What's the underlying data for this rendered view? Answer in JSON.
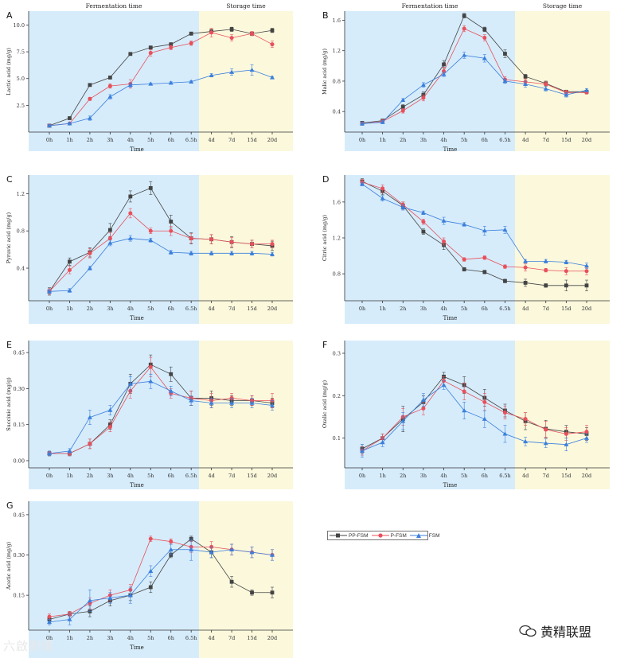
{
  "legend": [
    {
      "name": "PP-FSM",
      "color": "#444444",
      "marker": "square"
    },
    {
      "name": "P-FSM",
      "color": "#e8505b",
      "marker": "circle"
    },
    {
      "name": "FSM",
      "color": "#3b7fdc",
      "marker": "triangle"
    }
  ],
  "colors": {
    "fermentation_bg": "#d6ecfb",
    "storage_bg": "#fbf8dc",
    "axis": "#333333"
  },
  "watermark": {
    "left_text": "六啟鹊儒",
    "right_text": "黄精联盟"
  },
  "chart_data": [
    {
      "id": "A",
      "type": "line",
      "panel_label": "A",
      "title_left": "Fermentation time",
      "title_right": "Storage time",
      "xlabel": "Time",
      "ylabel": "Lactic acid (mg/g)",
      "categories": [
        "0h",
        "1h",
        "2h",
        "3h",
        "4h",
        "5h",
        "6h",
        "6.5h",
        "4d",
        "7d",
        "15d",
        "20d"
      ],
      "ylim": [
        0,
        11.3
      ],
      "yticks": [
        2.5,
        5.0,
        7.5,
        10.0
      ],
      "ytick_labels": [
        "2.5",
        "5.0",
        "7.5",
        "10.0"
      ],
      "series": [
        {
          "name": "PP-FSM",
          "values": [
            0.6,
            1.3,
            4.4,
            5.1,
            7.3,
            7.9,
            8.2,
            9.2,
            9.4,
            9.6,
            9.2,
            9.5
          ],
          "errors": [
            0.1,
            0.1,
            0.1,
            0.15,
            0.1,
            0.15,
            0.15,
            0.15,
            0.2,
            0.2,
            0.15,
            0.2
          ]
        },
        {
          "name": "P-FSM",
          "values": [
            0.6,
            0.8,
            3.1,
            4.3,
            4.5,
            7.4,
            7.9,
            8.3,
            9.3,
            8.8,
            9.2,
            8.2
          ],
          "errors": [
            0.1,
            0.1,
            0.15,
            0.2,
            0.4,
            0.3,
            0.2,
            0.2,
            0.4,
            0.3,
            0.2,
            0.3
          ]
        },
        {
          "name": "FSM",
          "values": [
            0.6,
            0.8,
            1.3,
            3.3,
            4.4,
            4.5,
            4.6,
            4.7,
            5.3,
            5.6,
            5.8,
            5.1
          ],
          "errors": [
            0.1,
            0.1,
            0.2,
            0.2,
            0.2,
            0.1,
            0.1,
            0.1,
            0.15,
            0.3,
            0.5,
            0.1
          ]
        }
      ]
    },
    {
      "id": "B",
      "type": "line",
      "panel_label": "B",
      "title_left": "Fermentation time",
      "title_right": "Storage time",
      "xlabel": "Time",
      "ylabel": "Malic acid (mg/g)",
      "categories": [
        "0h",
        "1h",
        "2h",
        "3h",
        "4h",
        "5h",
        "6h",
        "6.5h",
        "4d",
        "7d",
        "15d",
        "20d"
      ],
      "ylim": [
        0.13,
        1.72
      ],
      "yticks": [
        0.4,
        0.8,
        1.2,
        1.6
      ],
      "ytick_labels": [
        "0.4",
        "0.8",
        "1.2",
        "1.6"
      ],
      "series": [
        {
          "name": "PP-FSM",
          "values": [
            0.25,
            0.28,
            0.46,
            0.62,
            1.02,
            1.66,
            1.48,
            1.16,
            0.86,
            0.77,
            0.66,
            0.66
          ],
          "errors": [
            0.02,
            0.02,
            0.03,
            0.04,
            0.05,
            0.03,
            0.03,
            0.05,
            0.03,
            0.03,
            0.02,
            0.02
          ]
        },
        {
          "name": "P-FSM",
          "values": [
            0.24,
            0.27,
            0.41,
            0.58,
            0.93,
            1.49,
            1.37,
            0.82,
            0.79,
            0.76,
            0.65,
            0.65
          ],
          "errors": [
            0.02,
            0.02,
            0.03,
            0.04,
            0.05,
            0.04,
            0.04,
            0.04,
            0.04,
            0.03,
            0.03,
            0.02
          ]
        },
        {
          "name": "FSM",
          "values": [
            0.24,
            0.26,
            0.55,
            0.75,
            0.89,
            1.14,
            1.1,
            0.8,
            0.76,
            0.7,
            0.62,
            0.68
          ],
          "errors": [
            0.02,
            0.02,
            0.02,
            0.03,
            0.03,
            0.04,
            0.05,
            0.03,
            0.04,
            0.03,
            0.03,
            0.02
          ]
        }
      ]
    },
    {
      "id": "C",
      "type": "line",
      "panel_label": "C",
      "title_left": "",
      "title_right": "",
      "xlabel": "Time",
      "ylabel": "Pyruvic acid (mg/g)",
      "categories": [
        "0h",
        "1h",
        "2h",
        "3h",
        "4h",
        "5h",
        "6h",
        "6.5h",
        "4d",
        "7d",
        "15d",
        "20d"
      ],
      "ylim": [
        0.05,
        1.4
      ],
      "yticks": [
        0.4,
        0.8,
        1.2
      ],
      "ytick_labels": [
        "0.4",
        "0.8",
        "1.2"
      ],
      "series": [
        {
          "name": "PP-FSM",
          "values": [
            0.15,
            0.47,
            0.57,
            0.81,
            1.17,
            1.26,
            0.9,
            0.72,
            0.71,
            0.68,
            0.66,
            0.64
          ],
          "errors": [
            0.04,
            0.04,
            0.05,
            0.07,
            0.06,
            0.07,
            0.07,
            0.06,
            0.05,
            0.06,
            0.04,
            0.05
          ]
        },
        {
          "name": "P-FSM",
          "values": [
            0.15,
            0.38,
            0.56,
            0.72,
            0.99,
            0.8,
            0.8,
            0.72,
            0.71,
            0.68,
            0.66,
            0.66
          ],
          "errors": [
            0.03,
            0.04,
            0.05,
            0.06,
            0.05,
            0.03,
            0.05,
            0.05,
            0.05,
            0.05,
            0.04,
            0.04
          ]
        },
        {
          "name": "FSM",
          "values": [
            0.15,
            0.16,
            0.4,
            0.67,
            0.72,
            0.7,
            0.57,
            0.56,
            0.56,
            0.56,
            0.56,
            0.55
          ],
          "errors": [
            0.02,
            0.02,
            0.02,
            0.03,
            0.03,
            0.02,
            0.02,
            0.02,
            0.02,
            0.02,
            0.02,
            0.02
          ]
        }
      ]
    },
    {
      "id": "D",
      "type": "line",
      "panel_label": "D",
      "title_left": "",
      "title_right": "",
      "xlabel": "Time",
      "ylabel": "Citric acid (mg/g)",
      "categories": [
        "0h",
        "1h",
        "2h",
        "3h",
        "4h",
        "5h",
        "6h",
        "6.5h",
        "4d",
        "7d",
        "15d",
        "20d"
      ],
      "ylim": [
        0.5,
        1.9
      ],
      "yticks": [
        0.8,
        1.2,
        1.6
      ],
      "ytick_labels": [
        "0.8",
        "1.2",
        "1.6"
      ],
      "series": [
        {
          "name": "PP-FSM",
          "values": [
            1.83,
            1.72,
            1.56,
            1.27,
            1.12,
            0.85,
            0.82,
            0.72,
            0.7,
            0.67,
            0.67,
            0.67
          ],
          "errors": [
            0.03,
            0.04,
            0.04,
            0.03,
            0.05,
            0.02,
            0.02,
            0.02,
            0.04,
            0.02,
            0.06,
            0.06
          ]
        },
        {
          "name": "P-FSM",
          "values": [
            1.82,
            1.75,
            1.57,
            1.38,
            1.16,
            0.96,
            0.98,
            0.88,
            0.87,
            0.84,
            0.83,
            0.83
          ],
          "errors": [
            0.03,
            0.04,
            0.03,
            0.03,
            0.04,
            0.02,
            0.02,
            0.02,
            0.04,
            0.02,
            0.04,
            0.04
          ]
        },
        {
          "name": "FSM",
          "values": [
            1.8,
            1.64,
            1.54,
            1.48,
            1.39,
            1.35,
            1.28,
            1.29,
            0.94,
            0.94,
            0.93,
            0.89
          ],
          "errors": [
            0.02,
            0.03,
            0.03,
            0.02,
            0.04,
            0.02,
            0.05,
            0.04,
            0.02,
            0.02,
            0.02,
            0.03
          ]
        }
      ]
    },
    {
      "id": "E",
      "type": "line",
      "panel_label": "E",
      "title_left": "",
      "title_right": "",
      "xlabel": "Time",
      "ylabel": "Succinic acid (mg/g)",
      "categories": [
        "0h",
        "1h",
        "2h",
        "3h",
        "4h",
        "5h",
        "6h",
        "6.5h",
        "4d",
        "7d",
        "15d",
        "20d"
      ],
      "ylim": [
        -0.03,
        0.5
      ],
      "yticks": [
        0.0,
        0.15,
        0.3,
        0.45
      ],
      "ytick_labels": [
        "0.00",
        "0.15",
        "0.30",
        "0.45"
      ],
      "series": [
        {
          "name": "PP-FSM",
          "values": [
            0.03,
            0.03,
            0.07,
            0.15,
            0.32,
            0.4,
            0.36,
            0.26,
            0.26,
            0.25,
            0.25,
            0.24
          ],
          "errors": [
            0.01,
            0.01,
            0.02,
            0.02,
            0.04,
            0.04,
            0.03,
            0.03,
            0.03,
            0.02,
            0.02,
            0.02
          ]
        },
        {
          "name": "P-FSM",
          "values": [
            0.03,
            0.03,
            0.07,
            0.14,
            0.29,
            0.39,
            0.28,
            0.26,
            0.25,
            0.26,
            0.25,
            0.25
          ],
          "errors": [
            0.01,
            0.01,
            0.02,
            0.02,
            0.03,
            0.04,
            0.02,
            0.03,
            0.03,
            0.02,
            0.02,
            0.03
          ]
        },
        {
          "name": "FSM",
          "values": [
            0.03,
            0.04,
            0.18,
            0.21,
            0.32,
            0.33,
            0.29,
            0.25,
            0.24,
            0.24,
            0.24,
            0.23
          ],
          "errors": [
            0.01,
            0.01,
            0.03,
            0.02,
            0.03,
            0.03,
            0.02,
            0.02,
            0.02,
            0.02,
            0.02,
            0.02
          ]
        }
      ]
    },
    {
      "id": "F",
      "type": "line",
      "panel_label": "F",
      "title_left": "",
      "title_right": "",
      "xlabel": "Time",
      "ylabel": "Oxalic acid (mg/g)",
      "categories": [
        "0h",
        "1h",
        "2h",
        "3h",
        "4h",
        "5h",
        "6h",
        "6.5h",
        "4d",
        "7d",
        "15d",
        "20d"
      ],
      "ylim": [
        0.03,
        0.33
      ],
      "yticks": [
        0.1,
        0.2,
        0.3
      ],
      "ytick_labels": [
        "0.1",
        "0.2",
        "0.3"
      ],
      "series": [
        {
          "name": "PP-FSM",
          "values": [
            0.075,
            0.1,
            0.145,
            0.185,
            0.245,
            0.225,
            0.195,
            0.165,
            0.14,
            0.122,
            0.115,
            0.11
          ],
          "errors": [
            0.01,
            0.01,
            0.03,
            0.015,
            0.01,
            0.02,
            0.02,
            0.015,
            0.02,
            0.02,
            0.015,
            0.015
          ]
        },
        {
          "name": "P-FSM",
          "values": [
            0.07,
            0.1,
            0.15,
            0.17,
            0.235,
            0.21,
            0.185,
            0.16,
            0.145,
            0.12,
            0.11,
            0.115
          ],
          "errors": [
            0.01,
            0.01,
            0.02,
            0.015,
            0.01,
            0.02,
            0.02,
            0.015,
            0.015,
            0.02,
            0.015,
            0.015
          ]
        },
        {
          "name": "FSM",
          "values": [
            0.07,
            0.09,
            0.14,
            0.19,
            0.225,
            0.165,
            0.145,
            0.11,
            0.092,
            0.088,
            0.085,
            0.1
          ],
          "errors": [
            0.015,
            0.01,
            0.02,
            0.015,
            0.01,
            0.02,
            0.02,
            0.02,
            0.01,
            0.01,
            0.015,
            0.01
          ]
        }
      ]
    },
    {
      "id": "G",
      "type": "line",
      "panel_label": "G",
      "title_left": "",
      "title_right": "",
      "xlabel": "Time",
      "ylabel": "Acetic acid (mg/g)",
      "categories": [
        "0h",
        "1h",
        "2h",
        "3h",
        "4h",
        "5h",
        "6h",
        "6.5h",
        "4d",
        "7d",
        "15d",
        "20d"
      ],
      "ylim": [
        0.02,
        0.5
      ],
      "yticks": [
        0.15,
        0.3,
        0.45
      ],
      "ytick_labels": [
        "0.15",
        "0.30",
        "0.45"
      ],
      "series": [
        {
          "name": "PP-FSM",
          "values": [
            0.06,
            0.08,
            0.09,
            0.13,
            0.15,
            0.18,
            0.3,
            0.36,
            0.31,
            0.2,
            0.16,
            0.16
          ],
          "errors": [
            0.01,
            0.01,
            0.02,
            0.02,
            0.02,
            0.02,
            0.01,
            0.01,
            0.02,
            0.02,
            0.01,
            0.02
          ]
        },
        {
          "name": "P-FSM",
          "values": [
            0.07,
            0.08,
            0.12,
            0.15,
            0.17,
            0.36,
            0.35,
            0.33,
            0.33,
            0.32,
            0.31,
            0.3
          ],
          "errors": [
            0.01,
            0.01,
            0.02,
            0.02,
            0.02,
            0.01,
            0.01,
            0.02,
            0.02,
            0.02,
            0.02,
            0.02
          ]
        },
        {
          "name": "FSM",
          "values": [
            0.05,
            0.06,
            0.13,
            0.14,
            0.15,
            0.24,
            0.32,
            0.32,
            0.31,
            0.32,
            0.31,
            0.3
          ],
          "errors": [
            0.01,
            0.02,
            0.04,
            0.02,
            0.03,
            0.02,
            0.02,
            0.04,
            0.02,
            0.02,
            0.02,
            0.02
          ]
        }
      ]
    }
  ]
}
